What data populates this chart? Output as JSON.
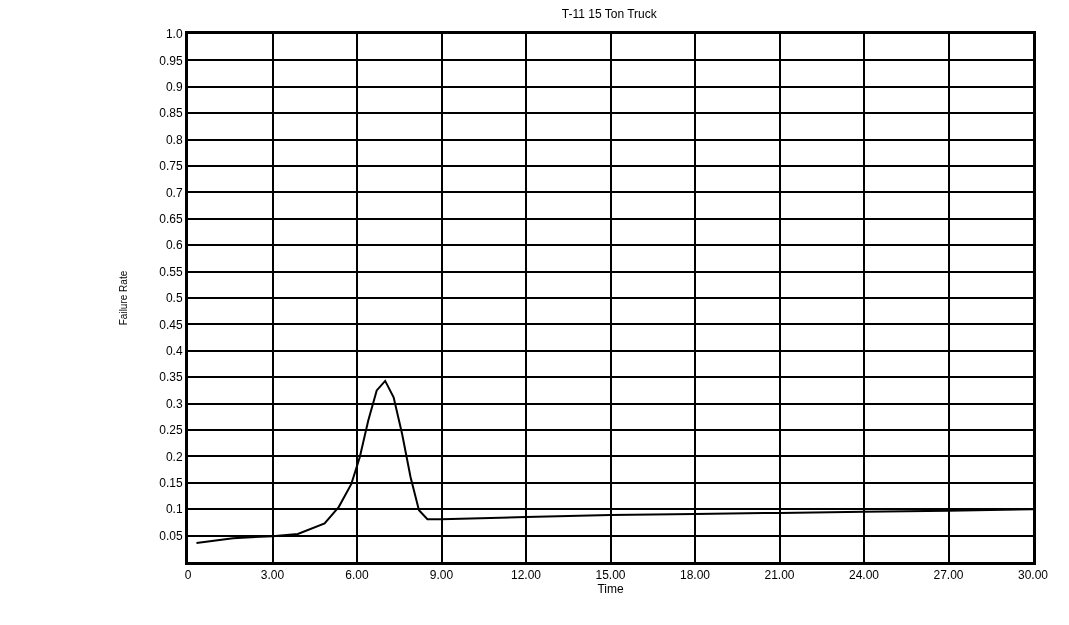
{
  "chart_data": {
    "type": "line",
    "title": "T-11 15 Ton Truck",
    "xlabel": "Time",
    "ylabel": "Failure Rate",
    "x": [
      0.3,
      1.6,
      3.0,
      3.9,
      4.85,
      5.35,
      5.8,
      6.1,
      6.4,
      6.7,
      7.0,
      7.3,
      7.6,
      7.9,
      8.2,
      8.5,
      9.0,
      12.0,
      15.0,
      18.0,
      21.0,
      24.0,
      27.0,
      30.0
    ],
    "series": [
      {
        "color": "#000000",
        "values": [
          0.036,
          0.045,
          0.049,
          0.053,
          0.073,
          0.104,
          0.148,
          0.199,
          0.268,
          0.325,
          0.343,
          0.312,
          0.243,
          0.161,
          0.098,
          0.081,
          0.081,
          0.085,
          0.089,
          0.091,
          0.093,
          0.095,
          0.097,
          0.1
        ]
      }
    ],
    "xlim": [
      0,
      30
    ],
    "ylim": [
      0,
      1.0
    ],
    "xticks": [
      0,
      {
        "value": 3,
        "label": "3.00"
      },
      {
        "value": 6,
        "label": "6.00"
      },
      {
        "value": 9,
        "label": "9.00"
      },
      {
        "value": 12,
        "label": "12.00"
      },
      {
        "value": 15,
        "label": "15.00"
      },
      {
        "value": 18,
        "label": "18.00"
      },
      {
        "value": 21,
        "label": "21.00"
      },
      {
        "value": 24,
        "label": "24.00"
      },
      {
        "value": 27,
        "label": "27.00"
      },
      {
        "value": 30,
        "label": "30.00"
      }
    ],
    "yticks": [
      0.05,
      0.1,
      0.15,
      0.2,
      0.25,
      0.3,
      0.35,
      0.4,
      0.45,
      0.5,
      0.55,
      0.6,
      0.65,
      0.7,
      0.75,
      0.8,
      0.85,
      0.9,
      0.95,
      {
        "value": 1.0,
        "label": "1.0"
      }
    ],
    "grid": true,
    "marker": "none",
    "line_style": "solid"
  }
}
